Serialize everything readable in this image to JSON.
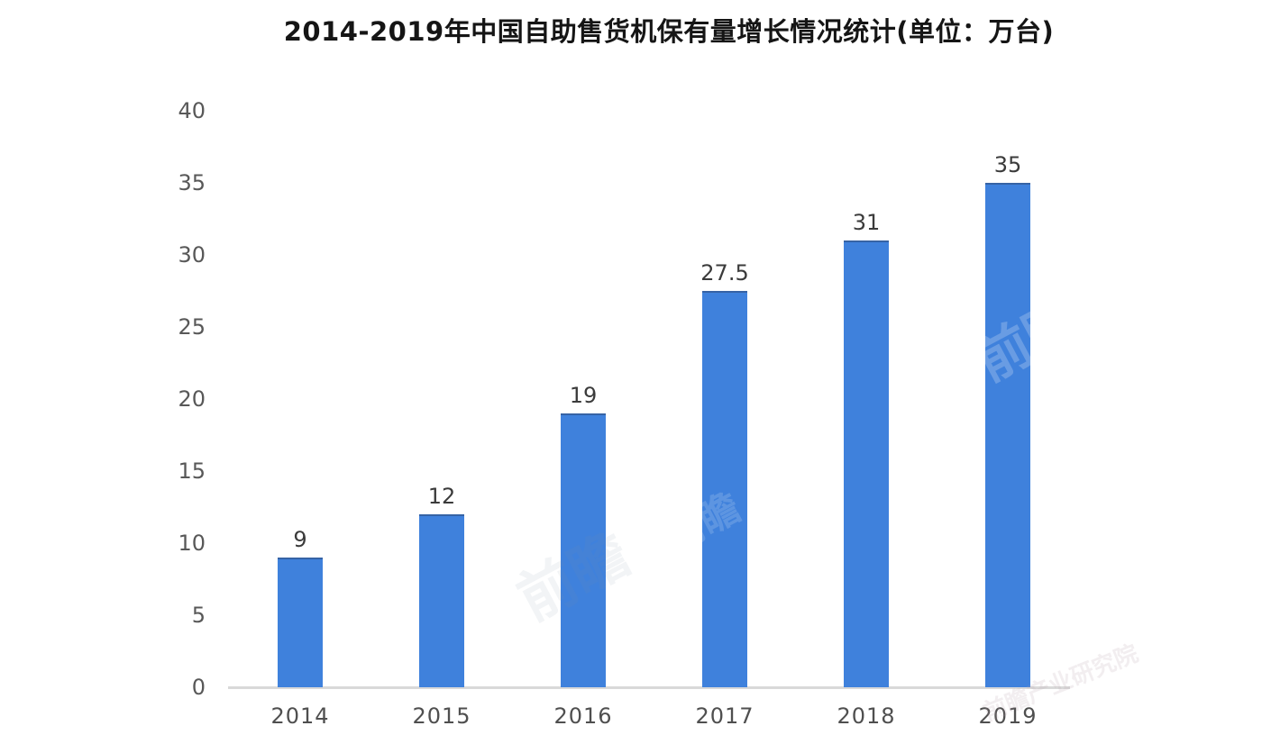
{
  "chart_data": {
    "type": "bar",
    "title": "2014-2019年中国自助售货机保有量增长情况统计(单位：万台)",
    "categories": [
      "2014",
      "2015",
      "2016",
      "2017",
      "2018",
      "2019"
    ],
    "values": [
      9,
      12,
      19,
      27.5,
      31,
      35
    ],
    "data_labels": [
      "9",
      "12",
      "19",
      "27.5",
      "31",
      "35"
    ],
    "ylim": [
      0,
      40
    ],
    "yticks": [
      0,
      5,
      10,
      15,
      20,
      25,
      30,
      35,
      40
    ],
    "xlabel": "",
    "ylabel": "",
    "grid": false,
    "legend": "none",
    "bar_color": "#3f81dc",
    "axis_line_color": "#d9d9d9",
    "ytick_color": "#585858",
    "xtick_color": "#4f4f4f",
    "data_label_color": "#3b3b3b",
    "title_color": "#151515"
  },
  "watermarks": [
    {
      "text": "前瞻"
    },
    {
      "text": "前瞻"
    },
    {
      "text": "前瞻产业研究院"
    },
    {
      "text": "前瞻"
    }
  ]
}
